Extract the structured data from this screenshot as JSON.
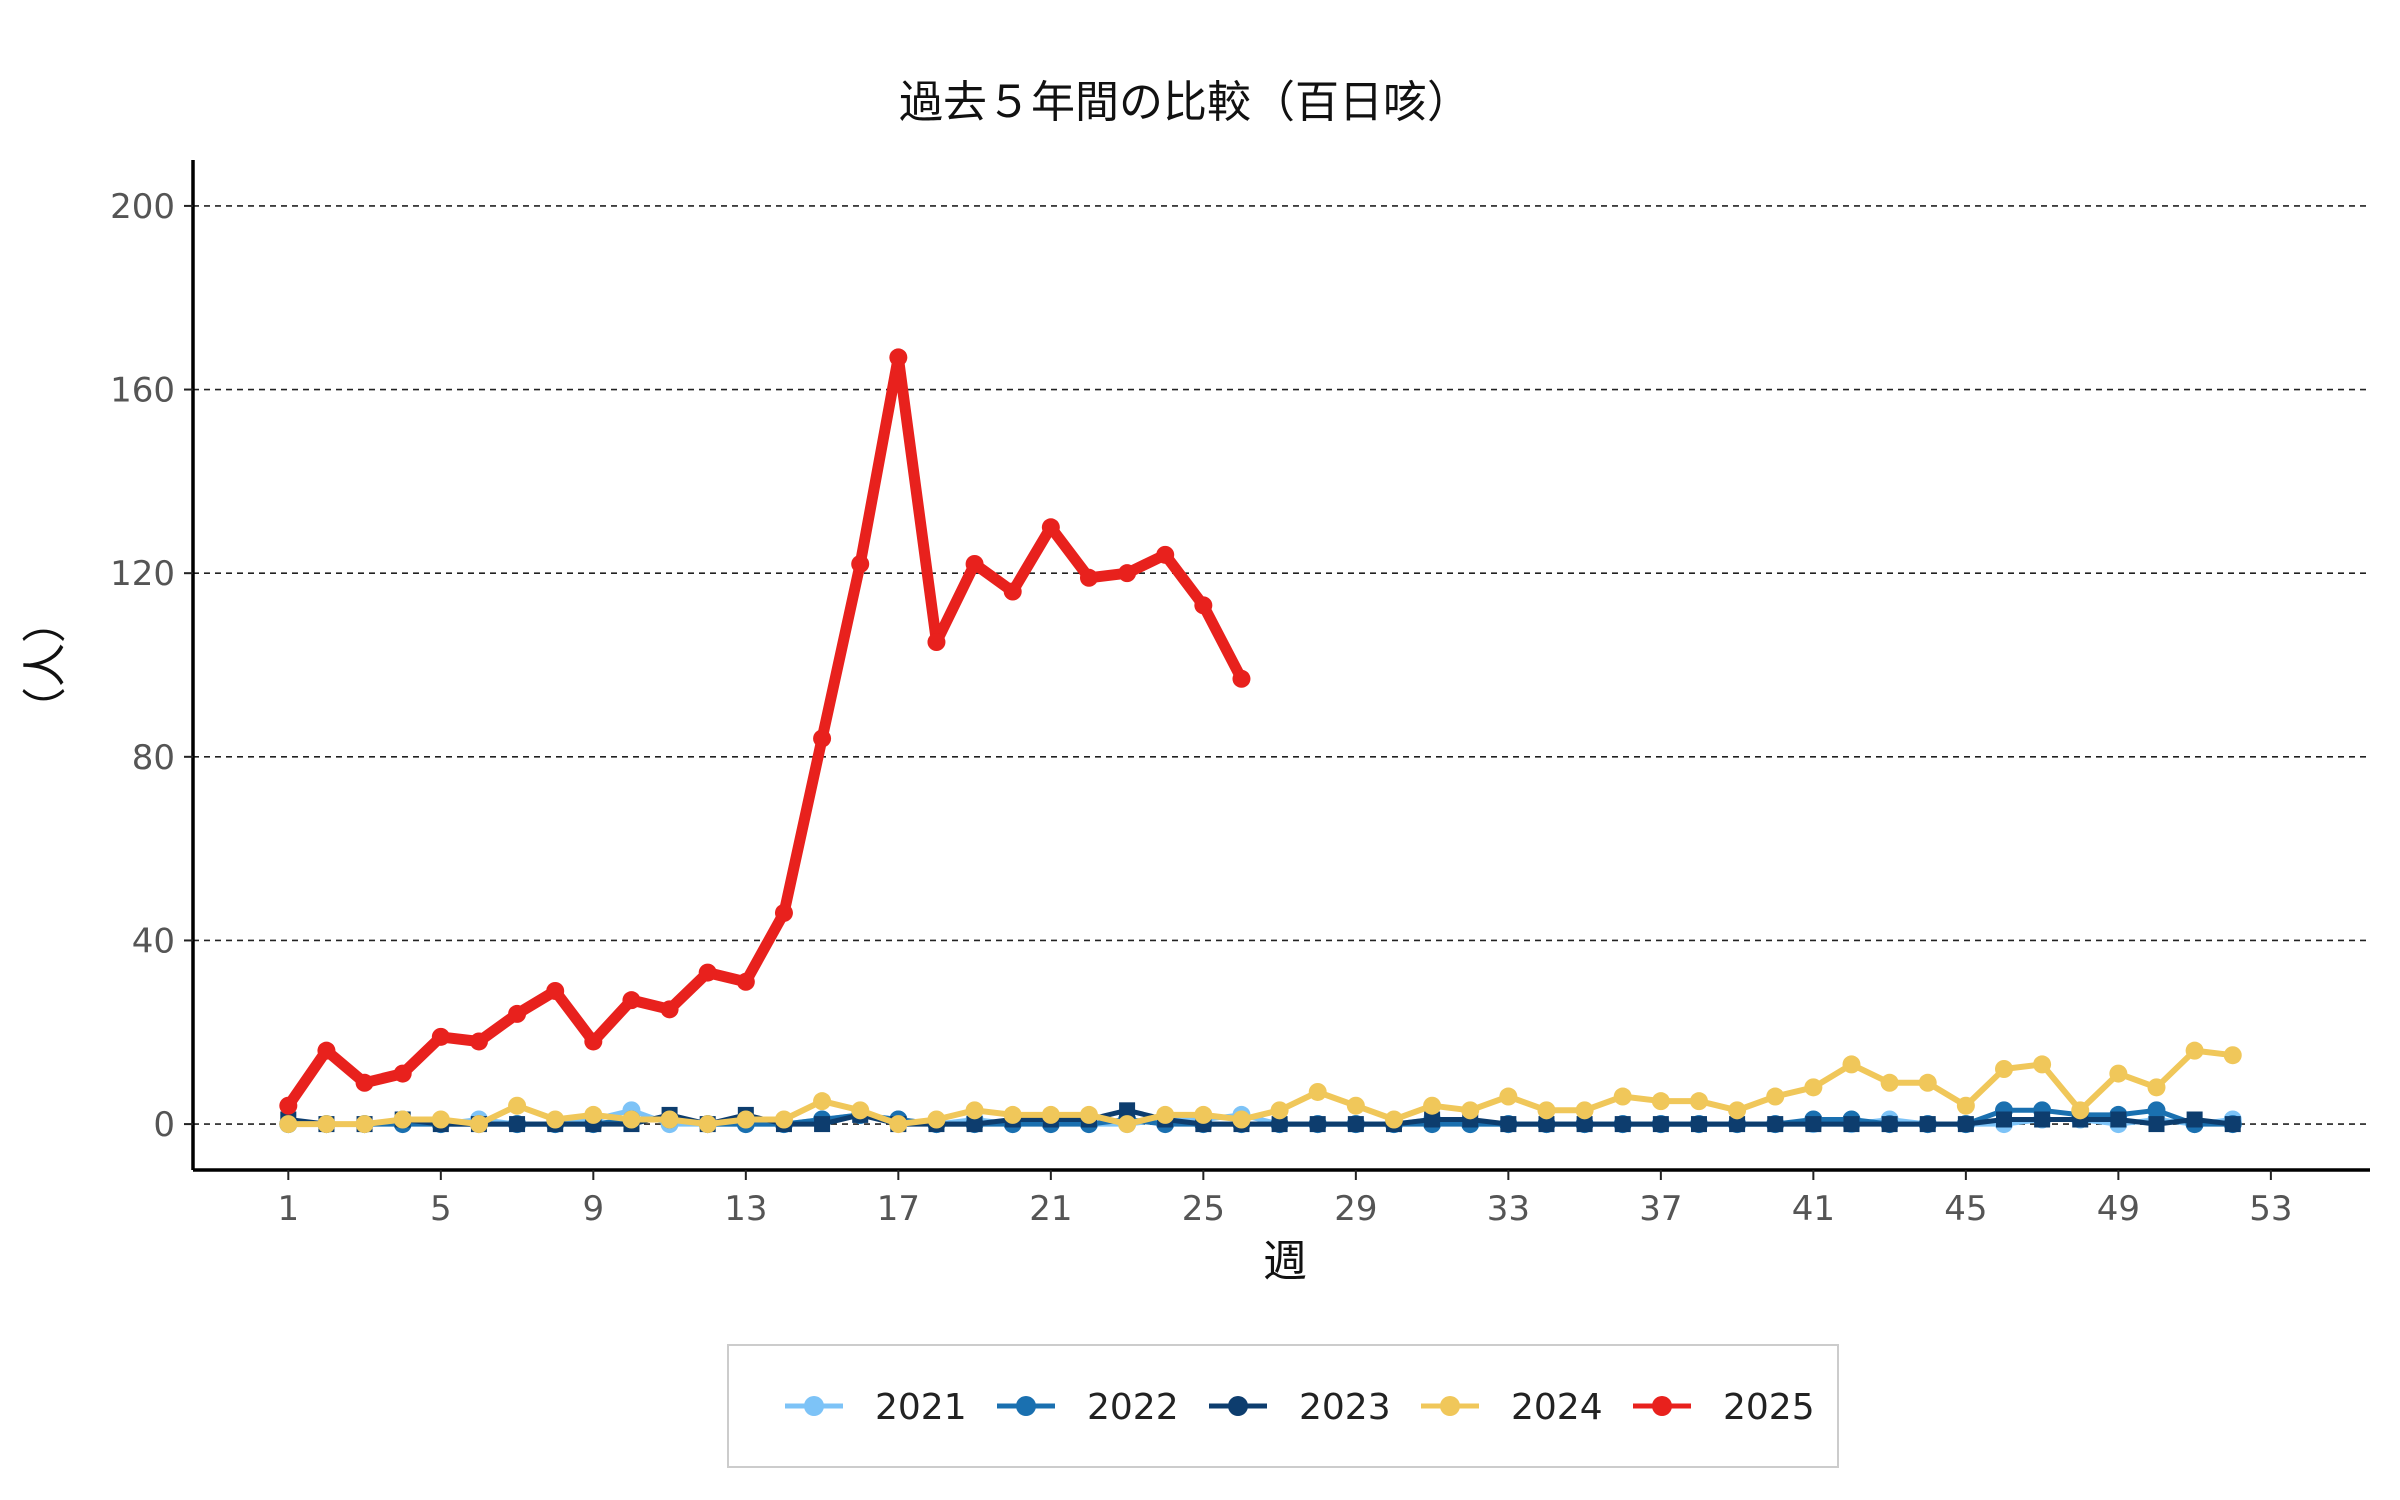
{
  "chart_data": {
    "type": "line",
    "title": "過去５年間の比較（百日咳）",
    "xlabel": "週",
    "ylabel": "（人）",
    "xlim": [
      -1.5,
      55.6
    ],
    "ylim": [
      -10,
      210
    ],
    "x_ticks": [
      1,
      5,
      9,
      13,
      17,
      21,
      25,
      29,
      33,
      37,
      41,
      45,
      49,
      53
    ],
    "y_ticks": [
      0,
      40,
      80,
      120,
      160,
      200
    ],
    "grid": "horizontal dashed",
    "legend_position": "bottom",
    "series": [
      {
        "name": "2021",
        "color": "#7dc3f7",
        "x": [
          1,
          2,
          3,
          4,
          5,
          6,
          7,
          8,
          9,
          10,
          11,
          12,
          13,
          14,
          15,
          16,
          17,
          18,
          19,
          20,
          21,
          22,
          23,
          24,
          25,
          26,
          27,
          28,
          29,
          30,
          31,
          32,
          33,
          34,
          35,
          36,
          37,
          38,
          39,
          40,
          41,
          42,
          43,
          44,
          45,
          46,
          47,
          48,
          49,
          50,
          51,
          52
        ],
        "values": [
          0,
          0,
          0,
          1,
          0,
          1,
          0,
          0,
          1,
          3,
          0,
          0,
          0,
          0,
          1,
          2,
          1,
          0,
          1,
          0,
          1,
          0,
          0,
          1,
          1,
          2,
          0,
          0,
          0,
          0,
          1,
          0,
          0,
          0,
          0,
          0,
          0,
          0,
          0,
          0,
          0,
          0,
          1,
          0,
          0,
          0,
          1,
          1,
          0,
          1,
          0,
          1
        ]
      },
      {
        "name": "2022",
        "color": "#1a70b0",
        "x": [
          1,
          2,
          3,
          4,
          5,
          6,
          7,
          8,
          9,
          10,
          11,
          12,
          13,
          14,
          15,
          16,
          17,
          18,
          19,
          20,
          21,
          22,
          23,
          24,
          25,
          26,
          27,
          28,
          29,
          30,
          31,
          32,
          33,
          34,
          35,
          36,
          37,
          38,
          39,
          40,
          41,
          42,
          43,
          44,
          45,
          46,
          47,
          48,
          49,
          50,
          51,
          52
        ],
        "values": [
          0,
          0,
          0,
          0,
          0,
          0,
          0,
          0,
          0,
          1,
          1,
          0,
          0,
          0,
          1,
          2,
          1,
          0,
          0,
          0,
          0,
          0,
          1,
          0,
          0,
          0,
          0,
          0,
          0,
          0,
          0,
          0,
          0,
          0,
          0,
          0,
          0,
          0,
          0,
          0,
          1,
          1,
          0,
          0,
          0,
          3,
          3,
          2,
          2,
          3,
          0,
          0
        ]
      },
      {
        "name": "2023",
        "color": "#0d3d6e",
        "x": [
          1,
          2,
          3,
          4,
          5,
          6,
          7,
          8,
          9,
          10,
          11,
          12,
          13,
          14,
          15,
          16,
          17,
          18,
          19,
          20,
          21,
          22,
          23,
          24,
          25,
          26,
          27,
          28,
          29,
          30,
          31,
          32,
          33,
          34,
          35,
          36,
          37,
          38,
          39,
          40,
          41,
          42,
          43,
          44,
          45,
          46,
          47,
          48,
          49,
          50,
          51,
          52
        ],
        "values": [
          1,
          0,
          0,
          1,
          0,
          0,
          0,
          0,
          0,
          0,
          2,
          0,
          2,
          0,
          0,
          2,
          0,
          0,
          0,
          1,
          1,
          1,
          3,
          1,
          0,
          0,
          0,
          0,
          0,
          0,
          1,
          1,
          0,
          0,
          0,
          0,
          0,
          0,
          0,
          0,
          0,
          0,
          0,
          0,
          0,
          1,
          1,
          1,
          1,
          0,
          1,
          0
        ]
      },
      {
        "name": "2024",
        "color": "#f0c75a",
        "x": [
          1,
          2,
          3,
          4,
          5,
          6,
          7,
          8,
          9,
          10,
          11,
          12,
          13,
          14,
          15,
          16,
          17,
          18,
          19,
          20,
          21,
          22,
          23,
          24,
          25,
          26,
          27,
          28,
          29,
          30,
          31,
          32,
          33,
          34,
          35,
          36,
          37,
          38,
          39,
          40,
          41,
          42,
          43,
          44,
          45,
          46,
          47,
          48,
          49,
          50,
          51,
          52
        ],
        "values": [
          0,
          0,
          0,
          1,
          1,
          0,
          4,
          1,
          2,
          1,
          1,
          0,
          1,
          1,
          5,
          3,
          0,
          1,
          3,
          2,
          2,
          2,
          0,
          2,
          2,
          1,
          3,
          7,
          4,
          1,
          4,
          3,
          6,
          3,
          3,
          6,
          5,
          5,
          3,
          6,
          8,
          13,
          9,
          9,
          4,
          12,
          13,
          3,
          11,
          8,
          16,
          15
        ]
      },
      {
        "name": "2025",
        "color": "#e8211d",
        "x": [
          1,
          2,
          3,
          4,
          5,
          6,
          7,
          8,
          9,
          10,
          11,
          12,
          13,
          14,
          15,
          16,
          17,
          18,
          19,
          20,
          21,
          22,
          23,
          24,
          25,
          26
        ],
        "values": [
          4,
          16,
          9,
          11,
          19,
          18,
          24,
          29,
          18,
          27,
          25,
          33,
          31,
          46,
          84,
          122,
          167,
          105,
          122,
          116,
          130,
          119,
          120,
          124,
          113,
          97
        ]
      }
    ]
  }
}
